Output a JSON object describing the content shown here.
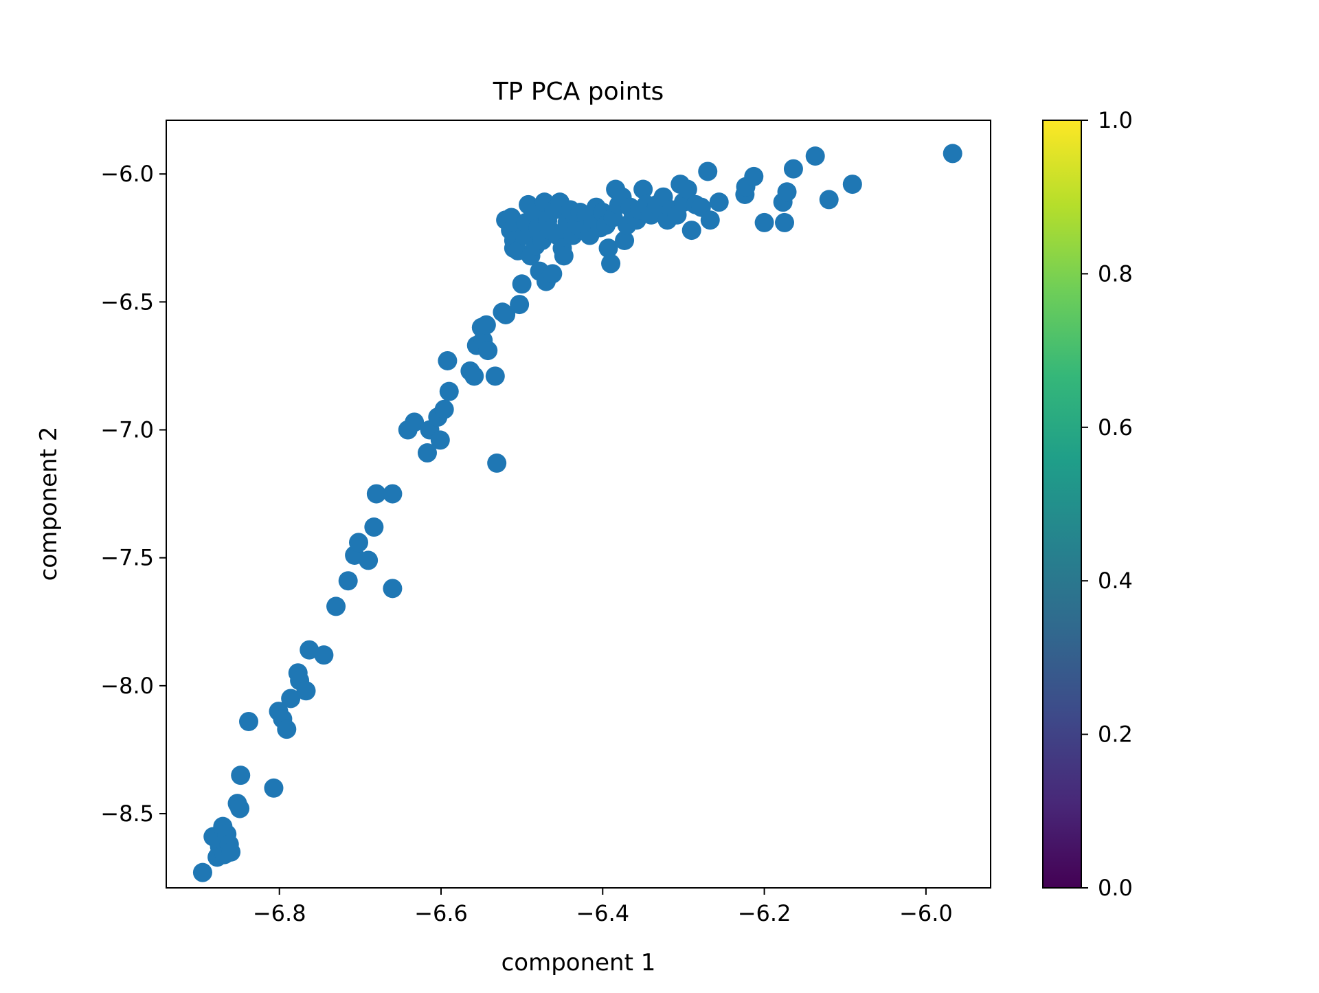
{
  "chart_data": {
    "type": "scatter",
    "title": "TP PCA points",
    "xlabel": "component 1",
    "ylabel": "component 2",
    "xlim": [
      -6.94,
      -5.92
    ],
    "ylim": [
      -8.79,
      -5.79
    ],
    "xticks": [
      -6.8,
      -6.6,
      -6.4,
      -6.2,
      -6.0
    ],
    "xtick_labels": [
      "−6.8",
      "−6.6",
      "−6.4",
      "−6.2",
      "−6.0"
    ],
    "yticks": [
      -6.0,
      -6.5,
      -7.0,
      -7.5,
      -8.0,
      -8.5
    ],
    "ytick_labels": [
      "−6.0",
      "−6.5",
      "−7.0",
      "−7.5",
      "−8.0",
      "−8.5"
    ],
    "grid": false,
    "marker_color": "#1f77b4",
    "colorbar": {
      "colormap": "viridis",
      "range": [
        0.0,
        1.0
      ],
      "ticks": [
        0.0,
        0.2,
        0.4,
        0.6,
        0.8,
        1.0
      ],
      "tick_labels": [
        "0.0",
        "0.2",
        "0.4",
        "0.6",
        "0.8",
        "1.0"
      ],
      "stops": [
        "#440154",
        "#482878",
        "#3e4989",
        "#31688e",
        "#26828e",
        "#1f9e89",
        "#35b779",
        "#6ece58",
        "#b5de2b",
        "#fde725"
      ]
    },
    "points": [
      [
        -6.895,
        -8.73
      ],
      [
        -6.882,
        -8.59
      ],
      [
        -6.877,
        -8.67
      ],
      [
        -6.874,
        -8.63
      ],
      [
        -6.872,
        -8.6
      ],
      [
        -6.87,
        -8.55
      ],
      [
        -6.868,
        -8.66
      ],
      [
        -6.865,
        -8.58
      ],
      [
        -6.862,
        -8.62
      ],
      [
        -6.86,
        -8.65
      ],
      [
        -6.852,
        -8.46
      ],
      [
        -6.849,
        -8.48
      ],
      [
        -6.848,
        -8.35
      ],
      [
        -6.838,
        -8.14
      ],
      [
        -6.807,
        -8.4
      ],
      [
        -6.801,
        -8.1
      ],
      [
        -6.796,
        -8.13
      ],
      [
        -6.791,
        -8.17
      ],
      [
        -6.786,
        -8.05
      ],
      [
        -6.777,
        -7.95
      ],
      [
        -6.775,
        -7.98
      ],
      [
        -6.767,
        -8.02
      ],
      [
        -6.763,
        -7.86
      ],
      [
        -6.745,
        -7.88
      ],
      [
        -6.73,
        -7.69
      ],
      [
        -6.715,
        -7.59
      ],
      [
        -6.707,
        -7.49
      ],
      [
        -6.702,
        -7.44
      ],
      [
        -6.69,
        -7.51
      ],
      [
        -6.683,
        -7.38
      ],
      [
        -6.68,
        -7.25
      ],
      [
        -6.66,
        -7.25
      ],
      [
        -6.66,
        -7.62
      ],
      [
        -6.641,
        -7.0
      ],
      [
        -6.633,
        -6.97
      ],
      [
        -6.617,
        -7.09
      ],
      [
        -6.614,
        -7.0
      ],
      [
        -6.604,
        -6.95
      ],
      [
        -6.601,
        -7.04
      ],
      [
        -6.596,
        -6.92
      ],
      [
        -6.59,
        -6.85
      ],
      [
        -6.592,
        -6.73
      ],
      [
        -6.564,
        -6.77
      ],
      [
        -6.559,
        -6.79
      ],
      [
        -6.556,
        -6.67
      ],
      [
        -6.55,
        -6.6
      ],
      [
        -6.548,
        -6.65
      ],
      [
        -6.544,
        -6.59
      ],
      [
        -6.542,
        -6.69
      ],
      [
        -6.533,
        -6.79
      ],
      [
        -6.531,
        -7.13
      ],
      [
        -6.524,
        -6.54
      ],
      [
        -6.52,
        -6.55
      ],
      [
        -6.52,
        -6.18
      ],
      [
        -6.513,
        -6.17
      ],
      [
        -6.514,
        -6.22
      ],
      [
        -6.51,
        -6.29
      ],
      [
        -6.51,
        -6.26
      ],
      [
        -6.505,
        -6.3
      ],
      [
        -6.503,
        -6.51
      ],
      [
        -6.5,
        -6.43
      ],
      [
        -6.497,
        -6.24
      ],
      [
        -6.495,
        -6.19
      ],
      [
        -6.492,
        -6.12
      ],
      [
        -6.489,
        -6.32
      ],
      [
        -6.485,
        -6.15
      ],
      [
        -6.483,
        -6.28
      ],
      [
        -6.48,
        -6.21
      ],
      [
        -6.478,
        -6.38
      ],
      [
        -6.475,
        -6.26
      ],
      [
        -6.472,
        -6.11
      ],
      [
        -6.47,
        -6.42
      ],
      [
        -6.468,
        -6.18
      ],
      [
        -6.465,
        -6.22
      ],
      [
        -6.462,
        -6.39
      ],
      [
        -6.46,
        -6.14
      ],
      [
        -6.456,
        -6.24
      ],
      [
        -6.453,
        -6.11
      ],
      [
        -6.45,
        -6.29
      ],
      [
        -6.448,
        -6.32
      ],
      [
        -6.444,
        -6.19
      ],
      [
        -6.44,
        -6.14
      ],
      [
        -6.437,
        -6.24
      ],
      [
        -6.432,
        -6.2
      ],
      [
        -6.428,
        -6.15
      ],
      [
        -6.424,
        -6.22
      ],
      [
        -6.42,
        -6.16
      ],
      [
        -6.416,
        -6.24
      ],
      [
        -6.412,
        -6.19
      ],
      [
        -6.408,
        -6.13
      ],
      [
        -6.403,
        -6.21
      ],
      [
        -6.4,
        -6.15
      ],
      [
        -6.396,
        -6.2
      ],
      [
        -6.393,
        -6.29
      ],
      [
        -6.39,
        -6.35
      ],
      [
        -6.387,
        -6.17
      ],
      [
        -6.384,
        -6.06
      ],
      [
        -6.38,
        -6.12
      ],
      [
        -6.376,
        -6.09
      ],
      [
        -6.373,
        -6.26
      ],
      [
        -6.37,
        -6.2
      ],
      [
        -6.366,
        -6.13
      ],
      [
        -6.362,
        -6.16
      ],
      [
        -6.358,
        -6.18
      ],
      [
        -6.354,
        -6.14
      ],
      [
        -6.35,
        -6.06
      ],
      [
        -6.346,
        -6.12
      ],
      [
        -6.34,
        -6.16
      ],
      [
        -6.333,
        -6.12
      ],
      [
        -6.325,
        -6.09
      ],
      [
        -6.32,
        -6.18
      ],
      [
        -6.315,
        -6.14
      ],
      [
        -6.308,
        -6.16
      ],
      [
        -6.304,
        -6.04
      ],
      [
        -6.3,
        -6.11
      ],
      [
        -6.295,
        -6.06
      ],
      [
        -6.29,
        -6.22
      ],
      [
        -6.285,
        -6.12
      ],
      [
        -6.278,
        -6.13
      ],
      [
        -6.27,
        -5.99
      ],
      [
        -6.267,
        -6.18
      ],
      [
        -6.256,
        -6.11
      ],
      [
        -6.224,
        -6.08
      ],
      [
        -6.223,
        -6.05
      ],
      [
        -6.213,
        -6.01
      ],
      [
        -6.2,
        -6.19
      ],
      [
        -6.177,
        -6.11
      ],
      [
        -6.175,
        -6.19
      ],
      [
        -6.172,
        -6.07
      ],
      [
        -6.164,
        -5.98
      ],
      [
        -6.137,
        -5.93
      ],
      [
        -6.12,
        -6.1
      ],
      [
        -6.091,
        -6.04
      ],
      [
        -5.967,
        -5.92
      ]
    ]
  }
}
